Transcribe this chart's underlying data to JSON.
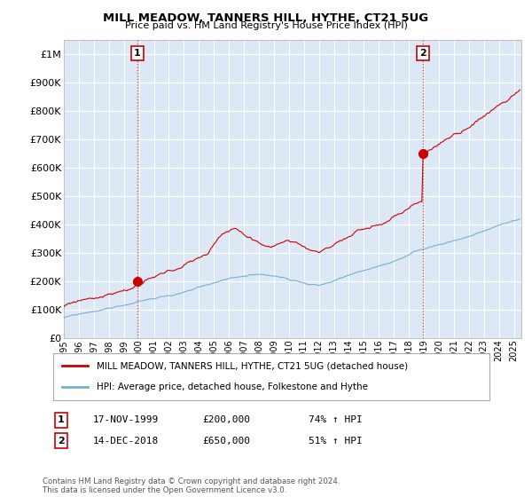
{
  "title": "MILL MEADOW, TANNERS HILL, HYTHE, CT21 5UG",
  "subtitle": "Price paid vs. HM Land Registry's House Price Index (HPI)",
  "ylabel_ticks": [
    "£0",
    "£100K",
    "£200K",
    "£300K",
    "£400K",
    "£500K",
    "£600K",
    "£700K",
    "£800K",
    "£900K",
    "£1M"
  ],
  "ytick_vals": [
    0,
    100000,
    200000,
    300000,
    400000,
    500000,
    600000,
    700000,
    800000,
    900000,
    1000000
  ],
  "ylim": [
    0,
    1050000
  ],
  "xlim_start": 1995.0,
  "xlim_end": 2025.5,
  "purchase1_x": 1999.88,
  "purchase1_y": 200000,
  "purchase2_x": 2018.95,
  "purchase2_y": 650000,
  "red_color": "#cc0000",
  "blue_color": "#7aafd4",
  "legend_label_red": "MILL MEADOW, TANNERS HILL, HYTHE, CT21 5UG (detached house)",
  "legend_label_blue": "HPI: Average price, detached house, Folkestone and Hythe",
  "annotation1_label": "1",
  "annotation1_date": "17-NOV-1999",
  "annotation1_price": "£200,000",
  "annotation1_hpi": "74% ↑ HPI",
  "annotation2_label": "2",
  "annotation2_date": "14-DEC-2018",
  "annotation2_price": "£650,000",
  "annotation2_hpi": "51% ↑ HPI",
  "footer": "Contains HM Land Registry data © Crown copyright and database right 2024.\nThis data is licensed under the Open Government Licence v3.0.",
  "dashed_x1": 1999.88,
  "dashed_x2": 2018.95,
  "background_color": "#ffffff",
  "plot_bg_color": "#dce8f5",
  "grid_color": "#ffffff"
}
